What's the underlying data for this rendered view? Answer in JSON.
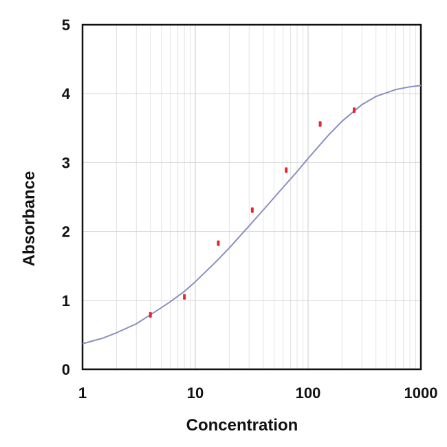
{
  "chart_data": {
    "type": "scatter",
    "title": "",
    "xlabel": "Concentration",
    "ylabel": "Absorbance",
    "x_scale": "log",
    "xlim": [
      1,
      1000
    ],
    "ylim": [
      0,
      5
    ],
    "x_ticks": [
      {
        "value": 1,
        "label": "1"
      },
      {
        "value": 10,
        "label": "10"
      },
      {
        "value": 100,
        "label": "100"
      },
      {
        "value": 1000,
        "label": "1000"
      }
    ],
    "y_ticks": [
      {
        "value": 0,
        "label": "0"
      },
      {
        "value": 1,
        "label": "1"
      },
      {
        "value": 2,
        "label": "2"
      },
      {
        "value": 3,
        "label": "3"
      },
      {
        "value": 4,
        "label": "4"
      },
      {
        "value": 5,
        "label": "5"
      }
    ],
    "grid": true,
    "legend": false,
    "series": [
      {
        "kind": "points",
        "color": "#e8262b",
        "x": [
          4,
          8,
          16,
          32,
          64,
          128,
          256
        ],
        "y": [
          0.79,
          1.05,
          1.83,
          2.31,
          2.89,
          3.56,
          3.76
        ]
      },
      {
        "kind": "fit-curve",
        "color": "#8a8fc0",
        "x": [
          1,
          1.5,
          2,
          3,
          4,
          6,
          8,
          10,
          15,
          20,
          30,
          40,
          60,
          80,
          100,
          150,
          200,
          300,
          400,
          600,
          800,
          1000
        ],
        "y": [
          0.37,
          0.45,
          0.53,
          0.66,
          0.79,
          0.98,
          1.13,
          1.27,
          1.55,
          1.76,
          2.08,
          2.31,
          2.64,
          2.87,
          3.06,
          3.39,
          3.6,
          3.84,
          3.96,
          4.06,
          4.1,
          4.12
        ]
      }
    ]
  }
}
